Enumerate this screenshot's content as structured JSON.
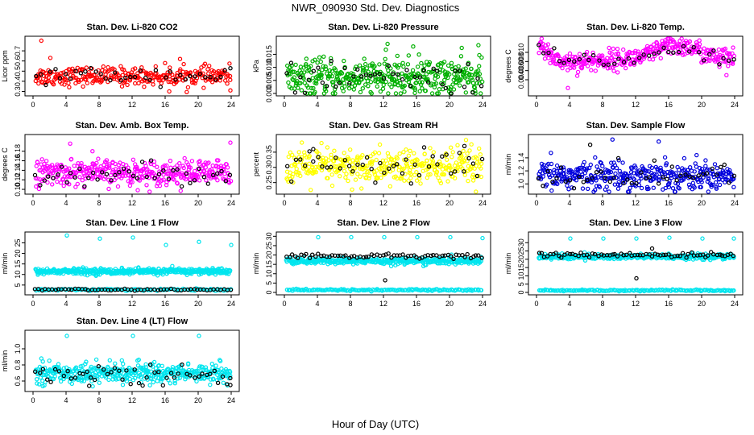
{
  "figure": {
    "title": "NWR_090930  Std. Dev. Diagnostics",
    "xlabel": "Hour of Day (UTC)"
  },
  "chart_data": [
    {
      "type": "scatter",
      "title": "Stan. Dev. Li-820 CO2",
      "ylabel": "Licor ppm",
      "xlim": [
        0,
        24
      ],
      "ylim": [
        0.28,
        0.82
      ],
      "xticks": [
        0,
        4,
        8,
        12,
        16,
        20,
        24
      ],
      "yticks": [
        0.3,
        0.4,
        0.5,
        0.6,
        0.7
      ],
      "colors": {
        "main": "#ff0000",
        "marker": "#000000"
      },
      "series": [
        {
          "color": "#ff0000",
          "n": 300,
          "mean": 0.45,
          "sd": 0.045,
          "outliers": [
            [
              1.0,
              0.8
            ],
            [
              2.1,
              0.63
            ],
            [
              16.5,
              0.3
            ],
            [
              23.9,
              0.31
            ],
            [
              17.8,
              0.62
            ]
          ]
        },
        {
          "color": "#000000",
          "n": 40,
          "mean": 0.46,
          "sd": 0.04,
          "outliers": []
        }
      ]
    },
    {
      "type": "scatter",
      "title": "Stan. Dev. Li-820 Pressure",
      "ylabel": "kPa",
      "xlim": [
        0,
        24
      ],
      "ylim": [
        0,
        0.021
      ],
      "xticks": [
        0,
        4,
        8,
        12,
        16,
        20,
        24
      ],
      "yticks": [
        0.0,
        0.005,
        0.01,
        0.015
      ],
      "yticklabels": [
        "0.000",
        "0.005",
        "0.010",
        "0.015"
      ],
      "series": [
        {
          "color": "#00b000",
          "n": 420,
          "mean": 0.006,
          "trend": 0.00025,
          "sd": 0.0035,
          "outliers": [
            [
              12.5,
              0.019
            ],
            [
              15.6,
              0.018
            ],
            [
              23.5,
              0.0185
            ]
          ]
        },
        {
          "color": "#000000",
          "n": 45,
          "mean": 0.006,
          "trend": 0.0002,
          "sd": 0.003,
          "outliers": []
        }
      ]
    },
    {
      "type": "scatter",
      "title": "Stan. Dev. Li-820 Temp.",
      "ylabel": "degrees C",
      "xlim": [
        0,
        24
      ],
      "ylim": [
        0.001,
        0.013
      ],
      "xticks": [
        0,
        4,
        8,
        12,
        16,
        20,
        24
      ],
      "yticks": [
        0.004,
        0.006,
        0.008,
        0.01
      ],
      "yticklabels": [
        "0.004",
        "0.006",
        "0.008",
        "0.010"
      ],
      "series": [
        {
          "color": "#ff00ff",
          "n": 380,
          "profile": [
            [
              0,
              0.0115
            ],
            [
              3,
              0.008
            ],
            [
              6,
              0.008
            ],
            [
              10,
              0.0085
            ],
            [
              13,
              0.009
            ],
            [
              16,
              0.0115
            ],
            [
              19,
              0.011
            ],
            [
              21,
              0.009
            ],
            [
              24,
              0.0085
            ]
          ],
          "sd": 0.0011,
          "outliers": [
            [
              3.8,
              0.0022
            ],
            [
              23,
              0.005
            ]
          ]
        },
        {
          "color": "#000000",
          "n": 40,
          "profile": [
            [
              0,
              0.011
            ],
            [
              3,
              0.008
            ],
            [
              6,
              0.008
            ],
            [
              10,
              0.0085
            ],
            [
              13,
              0.009
            ],
            [
              16,
              0.011
            ],
            [
              19,
              0.011
            ],
            [
              21,
              0.009
            ],
            [
              24,
              0.0085
            ]
          ],
          "sd": 0.0009,
          "outliers": []
        }
      ]
    },
    {
      "type": "scatter",
      "title": "Stan. Dev. Amb. Box Temp.",
      "ylabel": "degrees C",
      "xlim": [
        0,
        24
      ],
      "ylim": [
        0.095,
        0.21
      ],
      "xticks": [
        0,
        4,
        8,
        12,
        16,
        20,
        24
      ],
      "yticks": [
        0.1,
        0.12,
        0.14,
        0.16,
        0.18
      ],
      "yticklabels": [
        "0.10",
        "0.12",
        "0.14",
        "0.16",
        "0.18"
      ],
      "series": [
        {
          "color": "#ff00ff",
          "n": 380,
          "mean": 0.135,
          "sd": 0.013,
          "outliers": [
            [
              4.5,
              0.196
            ],
            [
              23.9,
              0.198
            ],
            [
              7.2,
              0.18
            ]
          ]
        },
        {
          "color": "#000000",
          "n": 45,
          "mean": 0.132,
          "sd": 0.011,
          "outliers": []
        }
      ]
    },
    {
      "type": "scatter",
      "title": "Stan. Dev. Gas Stream RH",
      "ylabel": "percent",
      "xlim": [
        0,
        24
      ],
      "ylim": [
        0.22,
        0.4
      ],
      "xticks": [
        0,
        4,
        8,
        12,
        16,
        20,
        24
      ],
      "yticks": [
        0.25,
        0.3,
        0.35
      ],
      "yticklabels": [
        "0.25",
        "0.30",
        "0.35"
      ],
      "series": [
        {
          "color": "#ffff00",
          "n": 380,
          "mean": 0.3,
          "sd": 0.03,
          "outliers": [
            [
              4.5,
              0.38
            ],
            [
              22,
              0.39
            ]
          ]
        },
        {
          "color": "#000000",
          "n": 45,
          "mean": 0.3,
          "sd": 0.025,
          "outliers": [
            [
              3.5,
              0.36
            ],
            [
              21.8,
              0.37
            ]
          ]
        }
      ]
    },
    {
      "type": "scatter",
      "title": "Stan. Dev. Sample Flow",
      "ylabel": "ml/min",
      "xlim": [
        0,
        24
      ],
      "ylim": [
        0.88,
        1.72
      ],
      "xticks": [
        0,
        4,
        8,
        12,
        16,
        20,
        24
      ],
      "yticks": [
        1.0,
        1.2,
        1.4
      ],
      "yticklabels": [
        "1.0",
        "1.2",
        "1.4"
      ],
      "series": [
        {
          "color": "#0000dd",
          "n": 380,
          "mean": 1.13,
          "sd": 0.11,
          "outliers": [
            [
              9.2,
              1.68
            ],
            [
              14.8,
              1.65
            ],
            [
              3.9,
              0.92
            ],
            [
              19.8,
              0.95
            ]
          ]
        },
        {
          "color": "#000000",
          "n": 45,
          "mean": 1.12,
          "sd": 0.1,
          "outliers": [
            [
              6.5,
              1.6
            ]
          ]
        }
      ]
    },
    {
      "type": "scatter",
      "title": "Stan. Dev. Line 1 Flow",
      "ylabel": "ml/min",
      "xlim": [
        0,
        24
      ],
      "ylim": [
        1.5,
        29
      ],
      "xticks": [
        0,
        4,
        8,
        12,
        16,
        20,
        24
      ],
      "yticks": [
        5,
        10,
        15,
        20,
        25
      ],
      "series": [
        {
          "color": "#00e5ee",
          "n": 450,
          "mean": 11.5,
          "sd": 0.7,
          "outliers": [
            [
              4.1,
              28.5
            ],
            [
              8.1,
              27.0
            ],
            [
              12.1,
              27.5
            ],
            [
              16.1,
              24.0
            ],
            [
              20.1,
              25.5
            ],
            [
              24.0,
              24.0
            ]
          ]
        },
        {
          "color": "#00e5ee",
          "n": 120,
          "mean": 2.8,
          "sd": 0.25,
          "outliers": []
        },
        {
          "color": "#000000",
          "n": 60,
          "mean": 2.8,
          "sd": 0.2,
          "outliers": []
        }
      ]
    },
    {
      "type": "scatter",
      "title": "Stan. Dev. Line 2 Flow",
      "ylabel": "ml/min",
      "xlim": [
        0,
        24
      ],
      "ylim": [
        0,
        31
      ],
      "xticks": [
        0,
        4,
        8,
        12,
        16,
        20,
        24
      ],
      "yticks": [
        0,
        5,
        10,
        15,
        20,
        25,
        30
      ],
      "series": [
        {
          "color": "#00e5ee",
          "n": 380,
          "mean": 16.8,
          "sd": 0.9,
          "outliers": [
            [
              4.1,
              29.5
            ],
            [
              8.1,
              29.5
            ],
            [
              12.1,
              29.5
            ],
            [
              16.1,
              29.5
            ],
            [
              20.1,
              29.5
            ],
            [
              24.0,
              29.0
            ]
          ]
        },
        {
          "color": "#00e5ee",
          "n": 150,
          "mean": 1.3,
          "sd": 0.25,
          "outliers": []
        },
        {
          "color": "#000000",
          "n": 70,
          "mean": 19.5,
          "sd": 0.6,
          "outliers": [
            [
              12.2,
              6.5
            ]
          ]
        }
      ]
    },
    {
      "type": "scatter",
      "title": "Stan. Dev. Line 3 Flow",
      "ylabel": "ml/min",
      "xlim": [
        0,
        24
      ],
      "ylim": [
        0,
        35
      ],
      "xticks": [
        0,
        4,
        8,
        12,
        16,
        20,
        24
      ],
      "yticks": [
        0,
        5,
        10,
        15,
        20,
        25,
        30
      ],
      "series": [
        {
          "color": "#00e5ee",
          "n": 380,
          "mean": 21.5,
          "sd": 0.8,
          "outliers": [
            [
              4.1,
              32.5
            ],
            [
              8.1,
              32.5
            ],
            [
              12.1,
              32.5
            ],
            [
              16.1,
              33.0
            ],
            [
              20.1,
              32.5
            ],
            [
              23.9,
              32.5
            ]
          ]
        },
        {
          "color": "#00e5ee",
          "n": 150,
          "mean": 1.2,
          "sd": 0.25,
          "outliers": []
        },
        {
          "color": "#000000",
          "n": 70,
          "mean": 22.5,
          "sd": 0.7,
          "outliers": [
            [
              12.1,
              8.5
            ],
            [
              14.0,
              26.5
            ]
          ]
        }
      ]
    },
    {
      "type": "scatter",
      "title": "Stan. Dev. Line 4 (LT) Flow",
      "ylabel": "ml/min",
      "xlim": [
        0,
        24
      ],
      "ylim": [
        0.5,
        1.2
      ],
      "xticks": [
        0,
        4,
        8,
        12,
        16,
        20,
        24
      ],
      "yticks": [
        0.6,
        0.8,
        1.0
      ],
      "yticklabels": [
        "0.6",
        "0.8",
        "1.0"
      ],
      "series": [
        {
          "color": "#00e5ee",
          "n": 420,
          "mean": 0.7,
          "sd": 0.06,
          "outliers": [
            [
              4.1,
              1.16
            ],
            [
              12.1,
              1.16
            ],
            [
              20.1,
              1.16
            ],
            [
              1.0,
              0.88
            ],
            [
              22.6,
              0.86
            ]
          ]
        },
        {
          "color": "#000000",
          "n": 50,
          "mean": 0.67,
          "sd": 0.06,
          "outliers": [
            [
              6.8,
              0.54
            ],
            [
              23.9,
              0.55
            ]
          ]
        }
      ]
    }
  ]
}
